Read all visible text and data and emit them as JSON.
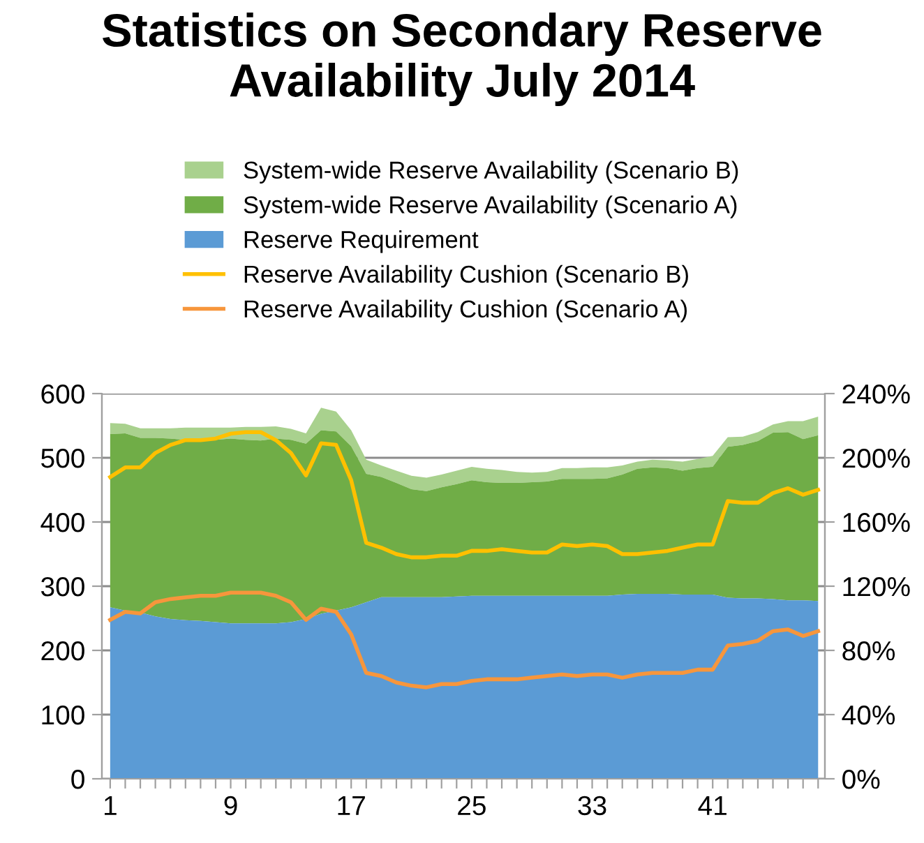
{
  "chart_data": {
    "type": "area",
    "title": "Statistics on Secondary Reserve\nAvailability July 2014",
    "categories": [
      "1",
      null,
      null,
      null,
      null,
      null,
      null,
      null,
      "9",
      null,
      null,
      null,
      null,
      null,
      null,
      null,
      "17",
      null,
      null,
      null,
      null,
      null,
      null,
      null,
      "25",
      null,
      null,
      null,
      null,
      null,
      null,
      null,
      "33",
      null,
      null,
      null,
      null,
      null,
      null,
      null,
      "41",
      null,
      null,
      null,
      null,
      null,
      null,
      null
    ],
    "series": [
      {
        "name": "System-wide Reserve Availability (Scenario B)",
        "type": "area",
        "color": "#a9d18e",
        "values": [
          554,
          553,
          546,
          546,
          546,
          547,
          547,
          547,
          547,
          548,
          548,
          549,
          545,
          538,
          578,
          572,
          543,
          497,
          488,
          480,
          472,
          469,
          474,
          480,
          486,
          483,
          481,
          478,
          477,
          478,
          484,
          484,
          485,
          485,
          488,
          494,
          497,
          496,
          494,
          498,
          503,
          532,
          533,
          540,
          552,
          557,
          557,
          564
        ]
      },
      {
        "name": "System-wide Reserve Availability (Scenario A)",
        "type": "area",
        "color": "#70ad47",
        "values": [
          537,
          538,
          531,
          531,
          530,
          528,
          530,
          528,
          530,
          528,
          527,
          530,
          528,
          522,
          543,
          541,
          518,
          475,
          470,
          461,
          451,
          448,
          454,
          459,
          465,
          462,
          461,
          461,
          462,
          463,
          467,
          467,
          467,
          468,
          474,
          483,
          485,
          484,
          480,
          484,
          486,
          517,
          520,
          526,
          539,
          540,
          529,
          535
        ]
      },
      {
        "name": "Reserve Requirement",
        "type": "area",
        "color": "#5b9bd5",
        "values": [
          267,
          262,
          259,
          253,
          249,
          247,
          246,
          244,
          242,
          242,
          242,
          242,
          244,
          249,
          257,
          262,
          267,
          275,
          283,
          283,
          283,
          283,
          283,
          284,
          285,
          285,
          285,
          285,
          285,
          285,
          285,
          285,
          285,
          285,
          287,
          288,
          288,
          288,
          287,
          287,
          287,
          282,
          281,
          281,
          280,
          278,
          278,
          277
        ]
      },
      {
        "name": "Reserve Availability Cushion (Scenario B)",
        "type": "line",
        "axis": "y2",
        "color": "#ffc000",
        "values": [
          188,
          194,
          194,
          203,
          208,
          211,
          211,
          212,
          215,
          216,
          216,
          211,
          203,
          189,
          209,
          208,
          186,
          147,
          144,
          140,
          138,
          138,
          139,
          139,
          142,
          142,
          143,
          142,
          141,
          141,
          146,
          145,
          146,
          145,
          140,
          140,
          141,
          142,
          144,
          146,
          146,
          173,
          172,
          172,
          178,
          181,
          177,
          180
        ]
      },
      {
        "name": "Reserve Availability Cushion (Scenario A)",
        "type": "line",
        "axis": "y2",
        "color": "#f7963c",
        "values": [
          99,
          104,
          103,
          110,
          112,
          113,
          114,
          114,
          116,
          116,
          116,
          114,
          110,
          99,
          106,
          104,
          90,
          66,
          64,
          60,
          58,
          57,
          59,
          59,
          61,
          62,
          62,
          62,
          63,
          64,
          65,
          64,
          65,
          65,
          63,
          65,
          66,
          66,
          66,
          68,
          68,
          83,
          84,
          86,
          92,
          93,
          89,
          92
        ]
      }
    ],
    "ylim": [
      0,
      600
    ],
    "yticks": [
      0,
      100,
      200,
      300,
      400,
      500,
      600
    ],
    "y2lim": [
      0,
      240
    ],
    "y2ticks": [
      {
        "value": 0,
        "label": "0%"
      },
      {
        "value": 40,
        "label": "40%"
      },
      {
        "value": 80,
        "label": "80%"
      },
      {
        "value": 120,
        "label": "120%"
      },
      {
        "value": 160,
        "label": "160%"
      },
      {
        "value": 200,
        "label": "200%"
      },
      {
        "value": 240,
        "label": "240%"
      }
    ],
    "grid": "y",
    "legend": "top",
    "marker": "none",
    "line_style": "solid"
  }
}
